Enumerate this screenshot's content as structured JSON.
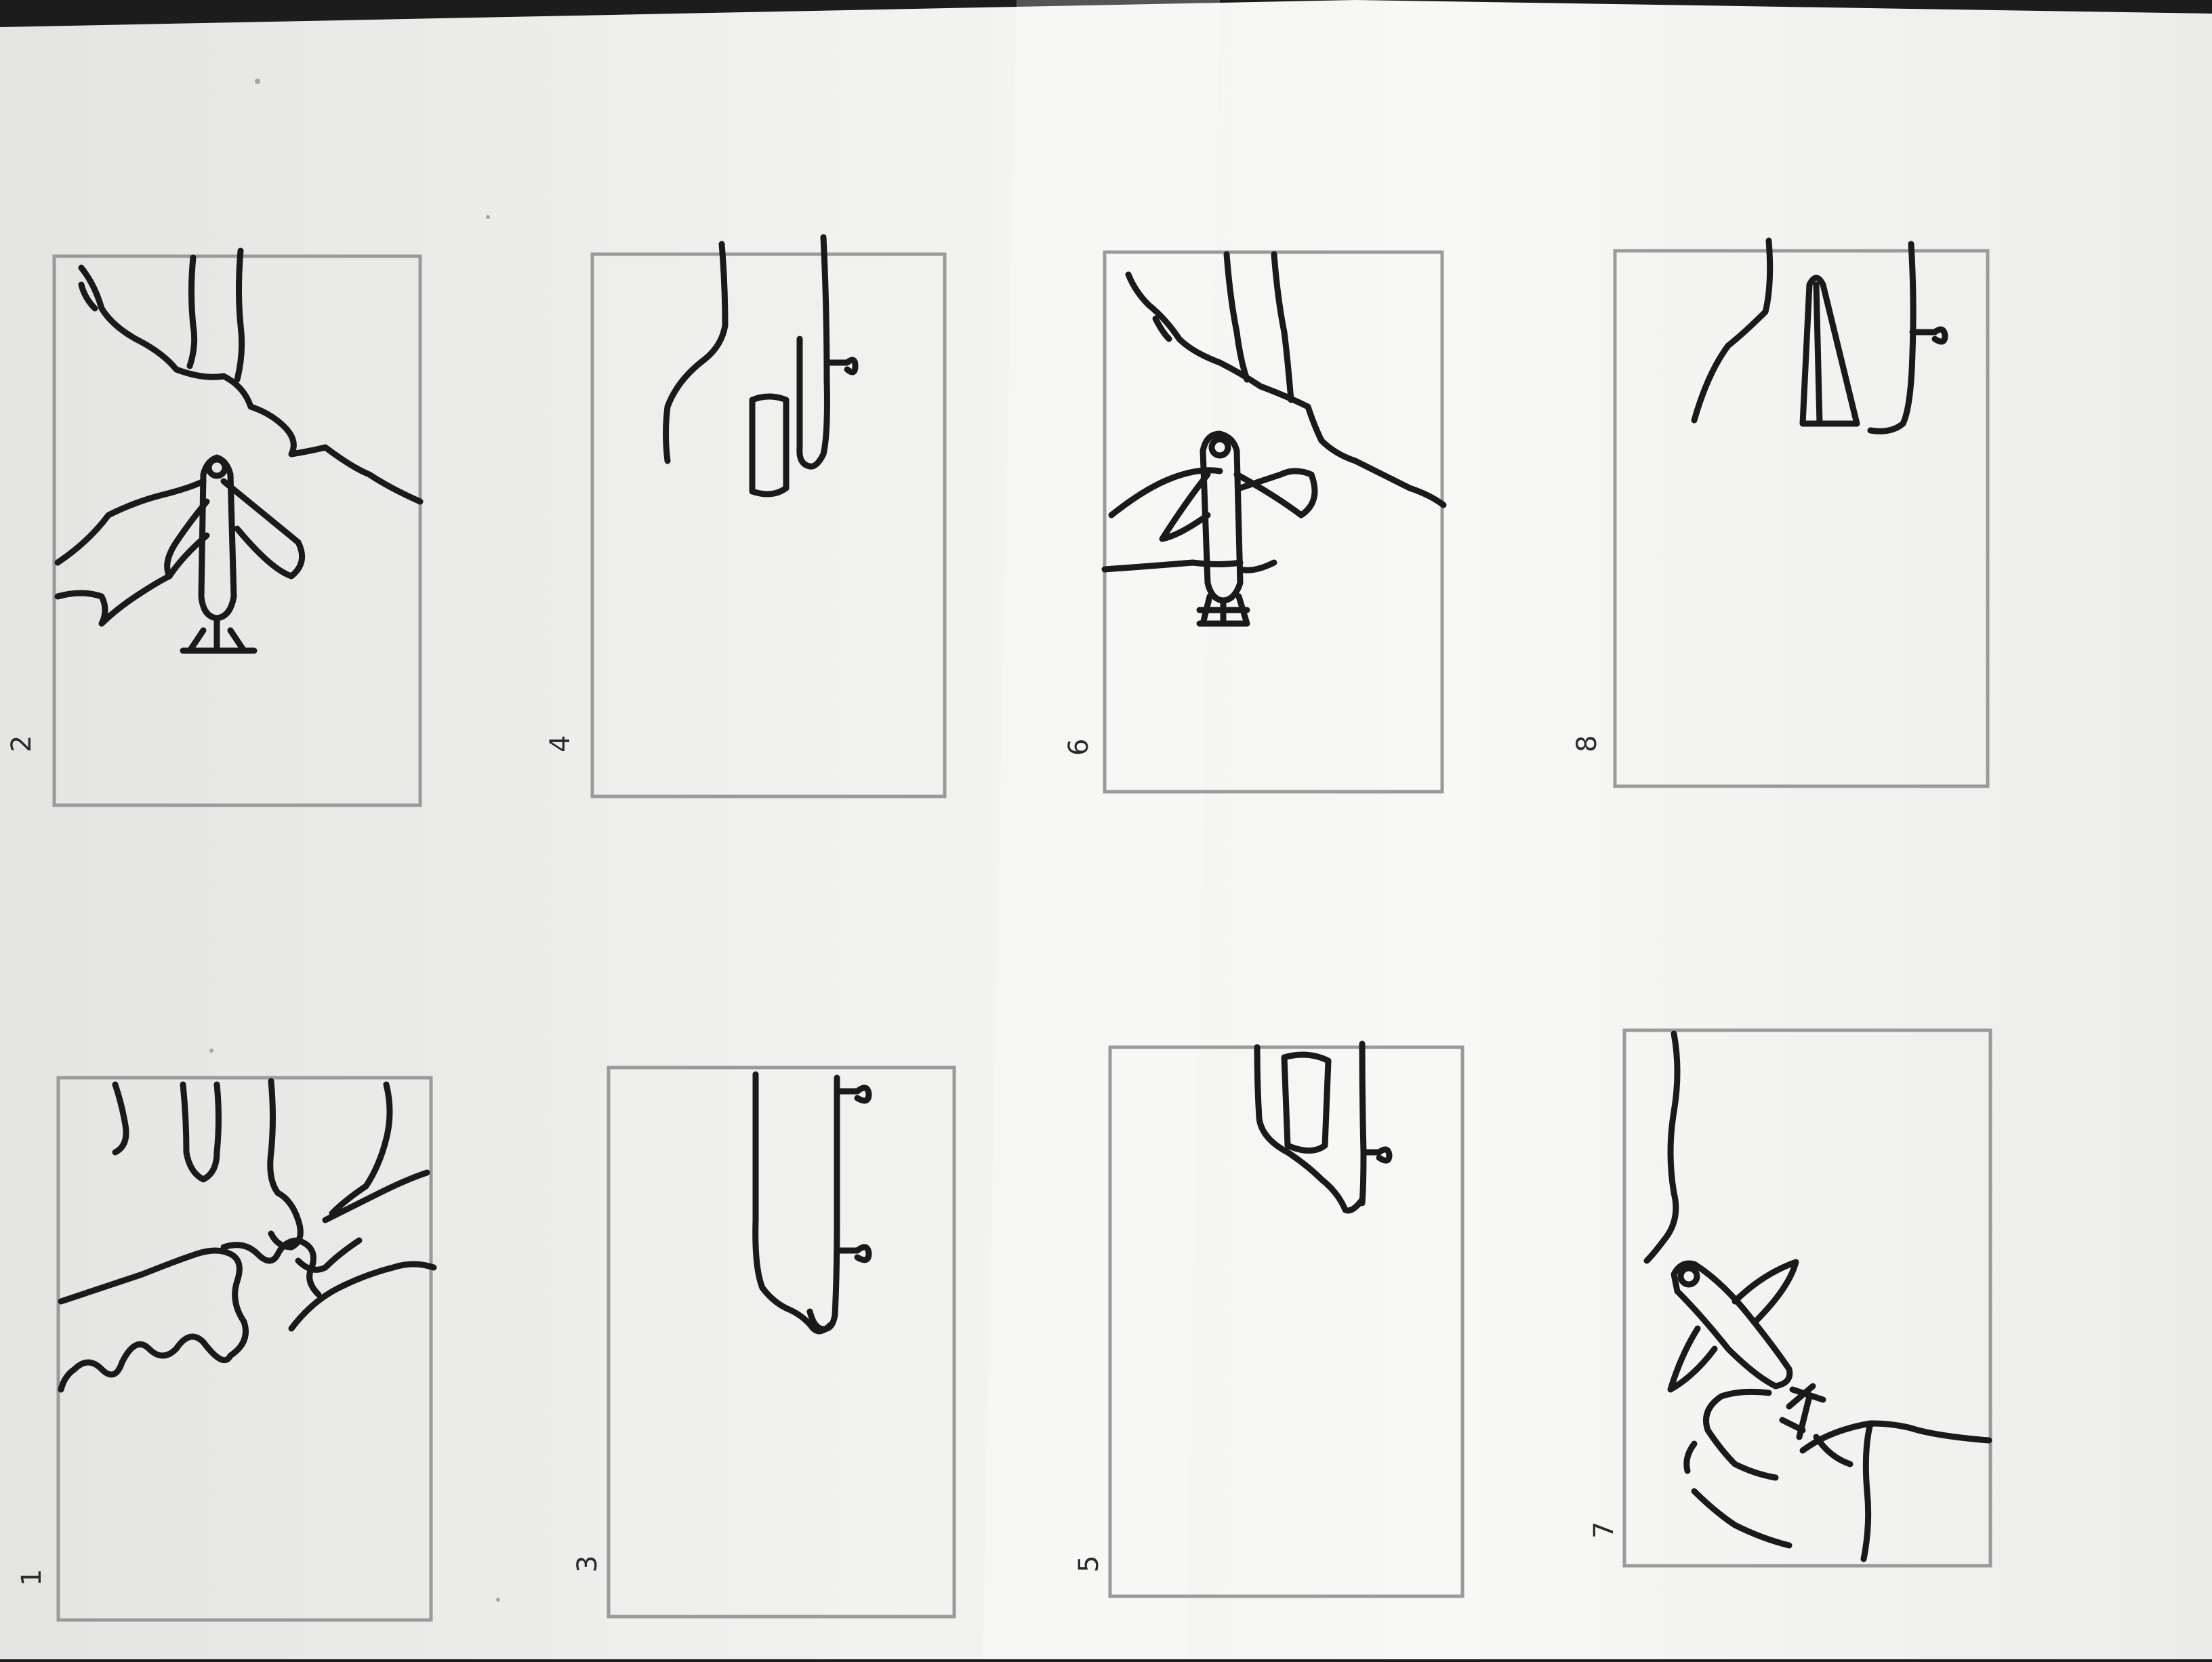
{
  "storyboard": {
    "frames": [
      {
        "number": "1",
        "content": "aerial-coastline"
      },
      {
        "number": "2",
        "content": "plane-over-coast"
      },
      {
        "number": "3",
        "content": "pier-two-flowers"
      },
      {
        "number": "4",
        "content": "capsule-at-pier"
      },
      {
        "number": "5",
        "content": "boat-at-pier"
      },
      {
        "number": "6",
        "content": "plane-over-coast"
      },
      {
        "number": "7",
        "content": "plane-diagonal-coast"
      },
      {
        "number": "8",
        "content": "sail-at-pier"
      }
    ]
  },
  "colors": {
    "ink": "#1a1a1a",
    "pencil": "#9a9a9a",
    "paper": "#f4f4f2",
    "background": "#1c1c1c"
  }
}
